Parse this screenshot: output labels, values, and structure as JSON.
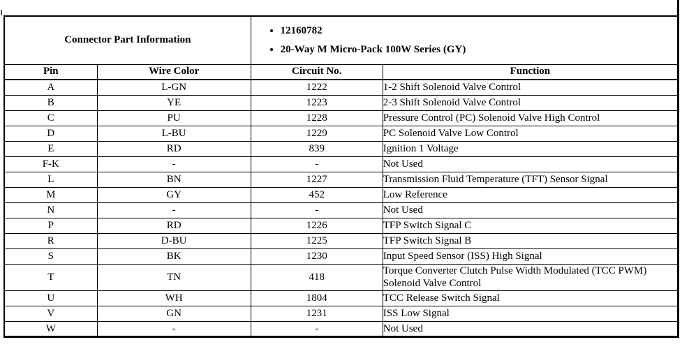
{
  "connector_header": {
    "title": "Connector Part Information",
    "bullets": [
      "12160782",
      "20-Way M Micro-Pack 100W Series (GY)"
    ]
  },
  "pin_table": {
    "columns": [
      "Pin",
      "Wire Color",
      "Circuit No.",
      "Function"
    ],
    "rows": [
      {
        "pin": "A",
        "wire": "L-GN",
        "circuit": "1222",
        "function": "1-2 Shift Solenoid Valve Control"
      },
      {
        "pin": "B",
        "wire": "YE",
        "circuit": "1223",
        "function": "2-3 Shift Solenoid Valve Control"
      },
      {
        "pin": "C",
        "wire": "PU",
        "circuit": "1228",
        "function": "Pressure Control (PC) Solenoid Valve High Control"
      },
      {
        "pin": "D",
        "wire": "L-BU",
        "circuit": "1229",
        "function": "PC Solenoid Valve Low Control"
      },
      {
        "pin": "E",
        "wire": "RD",
        "circuit": "839",
        "function": "Ignition 1 Voltage"
      },
      {
        "pin": "F-K",
        "wire": "-",
        "circuit": "-",
        "function": "Not Used"
      },
      {
        "pin": "L",
        "wire": "BN",
        "circuit": "1227",
        "function": "Transmission Fluid Temperature (TFT) Sensor Signal"
      },
      {
        "pin": "M",
        "wire": "GY",
        "circuit": "452",
        "function": "Low Reference"
      },
      {
        "pin": "N",
        "wire": "-",
        "circuit": "-",
        "function": "Not Used"
      },
      {
        "pin": "P",
        "wire": "RD",
        "circuit": "1226",
        "function": "TFP Switch Signal C"
      },
      {
        "pin": "R",
        "wire": "D-BU",
        "circuit": "1225",
        "function": "TFP Switch Signal B"
      },
      {
        "pin": "S",
        "wire": "BK",
        "circuit": "1230",
        "function": "Input Speed Sensor (ISS) High Signal"
      },
      {
        "pin": "T",
        "wire": "TN",
        "circuit": "418",
        "function": "Torque Converter Clutch Pulse Width Modulated (TCC PWM) Solenoid Valve Control"
      },
      {
        "pin": "U",
        "wire": "WH",
        "circuit": "1804",
        "function": "TCC Release Switch Signal"
      },
      {
        "pin": "V",
        "wire": "GN",
        "circuit": "1231",
        "function": "ISS Low Signal"
      },
      {
        "pin": "W",
        "wire": "-",
        "circuit": "-",
        "function": "Not Used"
      }
    ]
  },
  "colors": {
    "border": "#000000",
    "text": "#000000",
    "background": "#ffffff"
  }
}
